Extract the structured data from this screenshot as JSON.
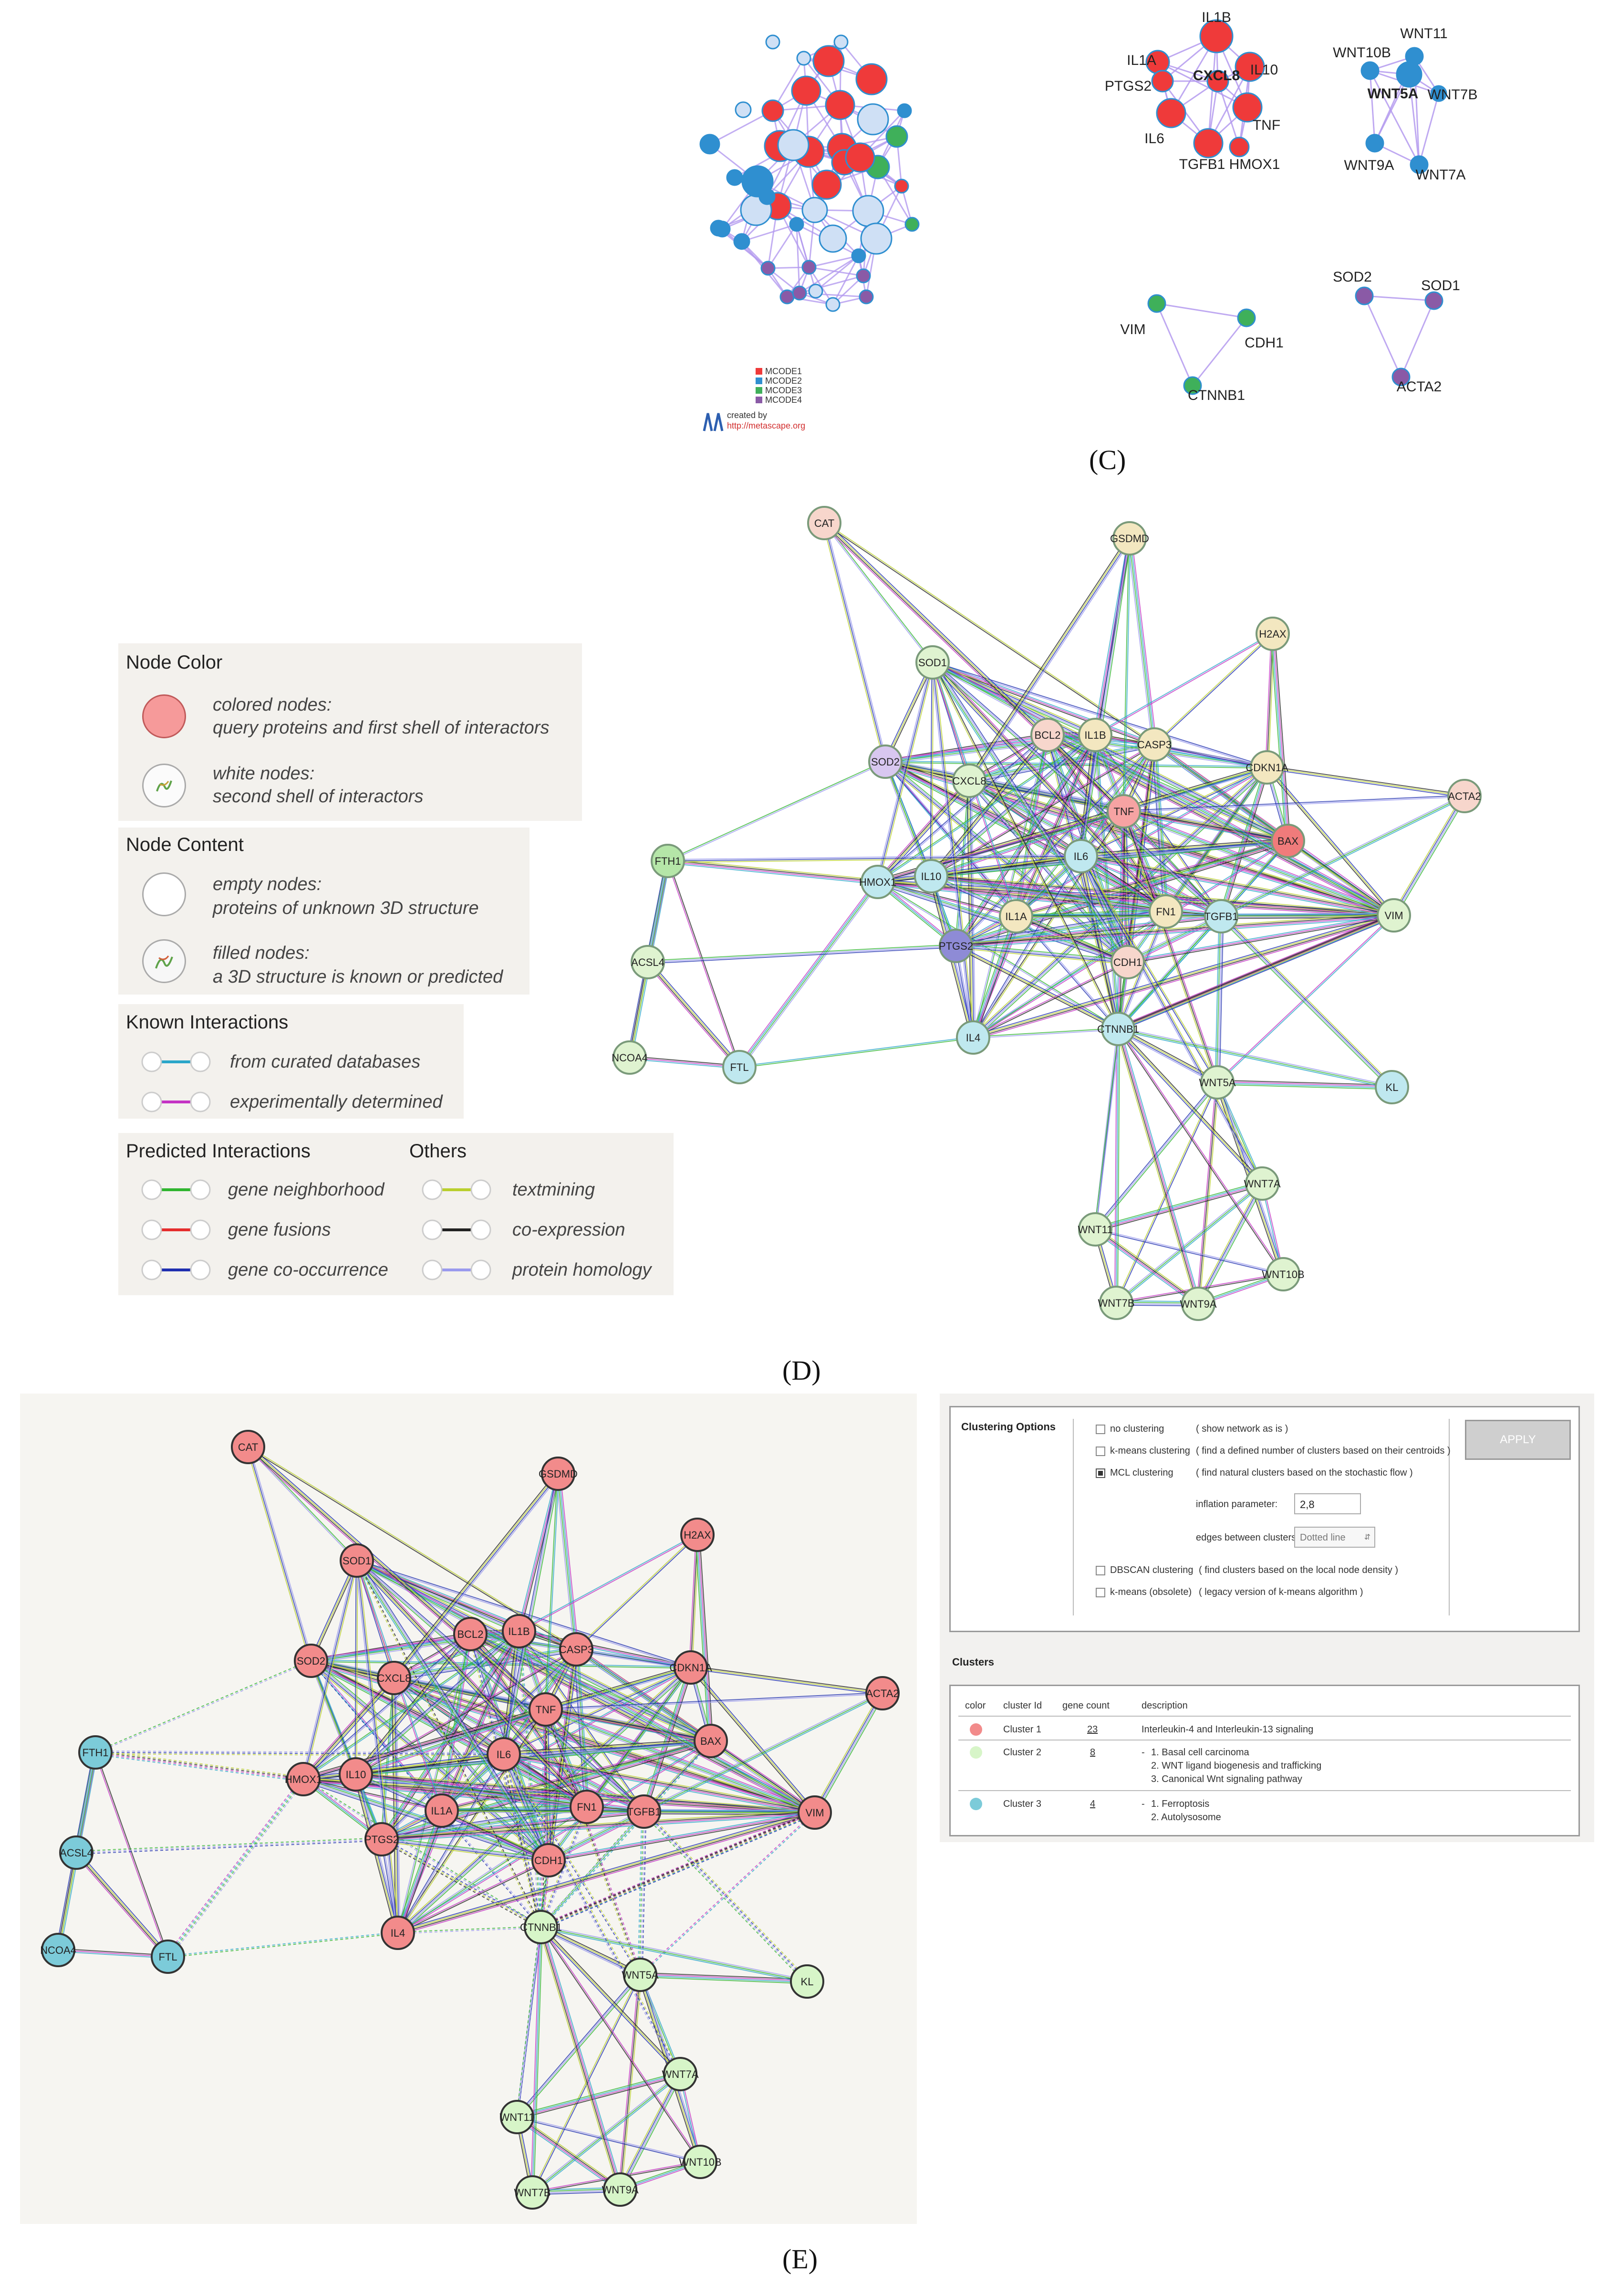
{
  "panels": {
    "c": "(C)",
    "d": "(D)",
    "e": "(E)"
  },
  "panel_c": {
    "labels": [
      "IL1B",
      "IL1A",
      "IL10",
      "PTGS2",
      "CXCL8",
      "TNF",
      "IL6",
      "TGFB1",
      "HMOX1",
      "WNT10B",
      "WNT11",
      "WNT5A",
      "WNT7B",
      "WNT9A",
      "WNT7A",
      "SOD2",
      "SOD1",
      "ACTA2",
      "VIM",
      "CDH1",
      "CTNNB1"
    ],
    "mcode_legend": [
      "MCODE1",
      "MCODE2",
      "MCODE3",
      "MCODE4"
    ],
    "created_by": "created by",
    "site": "http://metascape.org",
    "colors": {
      "mcode1": "#ef3a3a",
      "mcode2": "#2f8fd0",
      "mcode3": "#3fb05a",
      "mcode4": "#8a5aa6",
      "edge": "#b49bef",
      "light": "#cfe0f5"
    }
  },
  "legend_d": {
    "node_color_title": "Node Color",
    "colored_nodes_1": "colored nodes:",
    "colored_nodes_2": "query proteins and first shell of interactors",
    "white_nodes_1": "white nodes:",
    "white_nodes_2": "second shell of interactors",
    "node_content_title": "Node Content",
    "empty_nodes_1": "empty nodes:",
    "empty_nodes_2": "proteins of unknown 3D structure",
    "filled_nodes_1": "filled nodes:",
    "filled_nodes_2": "a 3D structure is known or predicted",
    "known_title": "Known Interactions",
    "curated": "from curated databases",
    "experimental": "experimentally determined",
    "predicted_title": "Predicted Interactions",
    "others_title": "Others",
    "neighborhood": "gene neighborhood",
    "fusions": "gene fusions",
    "cooccurrence": "gene co-occurrence",
    "textmining": "textmining",
    "coexpression": "co-expression",
    "homology": "protein homology",
    "colors": {
      "curated": "#2aa6c9",
      "experimental": "#c433c4",
      "neighborhood": "#2fb52f",
      "fusions": "#e52d2d",
      "cooccurrence": "#1f2fb0",
      "textmining": "#b9cf2d",
      "coexpression": "#222222",
      "homology": "#9a9aee"
    }
  },
  "network_d": {
    "nodes": [
      "CAT",
      "GSDMD",
      "H2AX",
      "SOD1",
      "BCL2",
      "IL1B",
      "CASP3",
      "CDKN1A",
      "ACTA2",
      "SOD2",
      "CXCL8",
      "TNF",
      "BAX",
      "FTH1",
      "HMOX1",
      "IL10",
      "IL6",
      "FN1",
      "TGFB1",
      "VIM",
      "IL1A",
      "PTGS2",
      "CDH1",
      "ACSL4",
      "NCOA4",
      "FTL",
      "IL4",
      "CTNNB1",
      "WNT5A",
      "KL",
      "WNT7A",
      "WNT11",
      "WNT10B",
      "WNT7B",
      "WNT9A"
    ]
  },
  "clustering": {
    "options_title": "Clustering Options",
    "no_clustering": "no clustering",
    "no_clustering_desc": "( show network as is )",
    "kmeans": "k-means clustering",
    "kmeans_desc": "( find a defined number of clusters based on their centroids )",
    "mcl": "MCL clustering",
    "mcl_desc": "( find natural clusters based on the stochastic flow )",
    "inflation_label": "inflation parameter:",
    "inflation_value": "2,8",
    "edges_label": "edges between clusters:",
    "edges_value": "Dotted line",
    "dbscan": "DBSCAN clustering",
    "dbscan_desc": "( find clusters based on the local node density )",
    "kmeans_old": "k-means (obsolete)",
    "kmeans_old_desc": "( legacy version of k-means algorithm )",
    "apply": "APPLY",
    "clusters_title": "Clusters",
    "col_color": "color",
    "col_id": "cluster Id",
    "col_count": "gene count",
    "col_desc": "description",
    "rows": [
      {
        "id": "Cluster 1",
        "count": "23",
        "desc": [
          "Interleukin-4 and Interleukin-13 signaling"
        ],
        "color": "#f28b8b"
      },
      {
        "id": "Cluster 2",
        "count": "8",
        "desc": [
          "1. Basal cell carcinoma",
          "2. WNT ligand biogenesis and trafficking",
          "3. Canonical Wnt signaling pathway"
        ],
        "color": "#d7f5c8"
      },
      {
        "id": "Cluster 3",
        "count": "4",
        "desc": [
          "1. Ferroptosis",
          "2. Autolysosome"
        ],
        "color": "#7ccbd9"
      }
    ]
  }
}
